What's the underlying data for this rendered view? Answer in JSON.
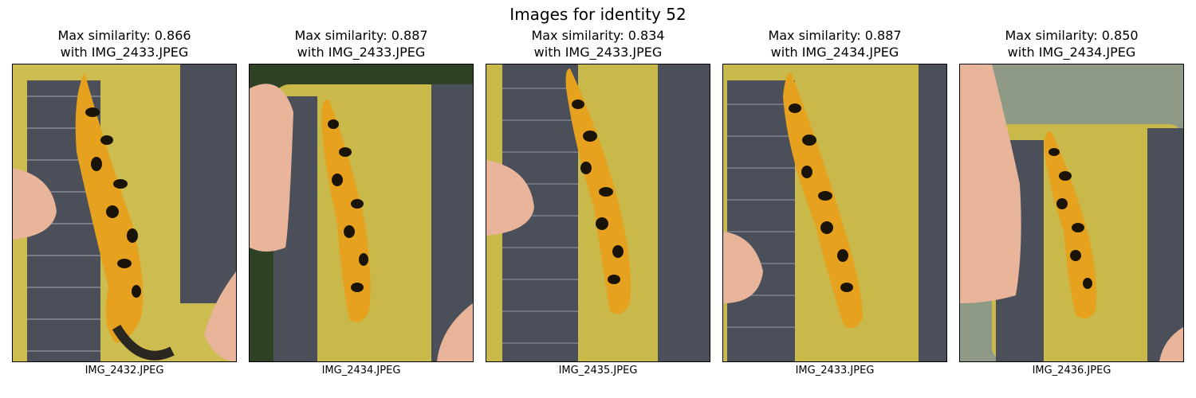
{
  "figure": {
    "title": "Images for identity 52"
  },
  "panels": [
    {
      "line1": "Max similarity: 0.866",
      "line2": "with IMG_2433.JPEG",
      "caption": "IMG_2432.JPEG"
    },
    {
      "line1": "Max similarity: 0.887",
      "line2": "with IMG_2433.JPEG",
      "caption": "IMG_2434.JPEG"
    },
    {
      "line1": "Max similarity: 0.834",
      "line2": "with IMG_2433.JPEG",
      "caption": "IMG_2435.JPEG"
    },
    {
      "line1": "Max similarity: 0.887",
      "line2": "with IMG_2434.JPEG",
      "caption": "IMG_2433.JPEG"
    },
    {
      "line1": "Max similarity: 0.850",
      "line2": "with IMG_2434.JPEG",
      "caption": "IMG_2436.JPEG"
    }
  ],
  "colors": {
    "sponge": "#c9b94a",
    "mesh": "#4a4f5a",
    "newt_belly": "#e6a21e",
    "newt_spots": "#1a1408",
    "skin": "#e8b49a",
    "grass": "#2f4226"
  }
}
